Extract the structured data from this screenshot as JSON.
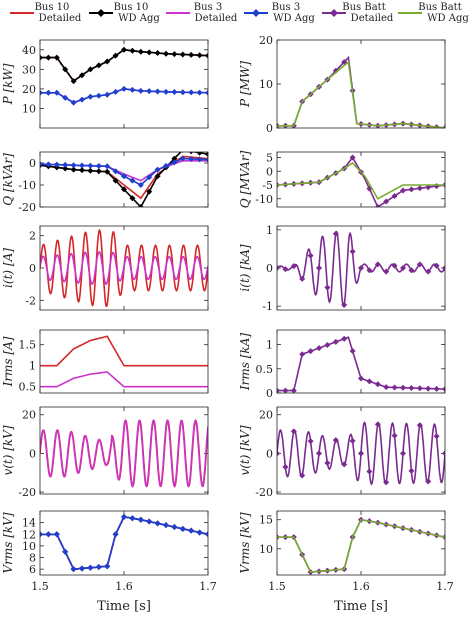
{
  "legend": [
    {
      "line1": "Bus 10",
      "line2": "Detailed",
      "color": "#d62728",
      "marker": "none"
    },
    {
      "line1": "Bus 10",
      "line2": "WD Agg",
      "color": "#000000",
      "marker": "diamond"
    },
    {
      "line1": "Bus 3",
      "line2": "Detailed",
      "color": "#cc33cc",
      "marker": "none"
    },
    {
      "line1": "Bus 3",
      "line2": "WD Agg",
      "color": "#1f3fcf",
      "marker": "diamond"
    },
    {
      "line1": "Bus Batt",
      "line2": "Detailed",
      "color": "#7a2b8f",
      "marker": "diamond"
    },
    {
      "line1": "Bus Batt",
      "line2": "WD Agg",
      "color": "#77ac30",
      "marker": "none"
    }
  ],
  "xlabel": "Time [s]",
  "x_ticks": [
    "1.5",
    "1.6",
    "1.7"
  ],
  "chart_data": [
    {
      "type": "line",
      "panel": "P-bus10-bus3",
      "ylabel": "P [kW]",
      "ylim": [
        0,
        45
      ],
      "yticks": [
        "10",
        "20",
        "30",
        "40"
      ],
      "x": [
        1.5,
        1.52,
        1.54,
        1.56,
        1.58,
        1.6,
        1.62,
        1.65,
        1.7
      ],
      "series": [
        {
          "name": "Bus 10 Detailed",
          "values": [
            36,
            36,
            24,
            30,
            34,
            40,
            39,
            38,
            37
          ]
        },
        {
          "name": "Bus 10 WD Agg",
          "values": [
            36,
            36,
            24,
            30,
            34,
            40,
            39,
            38,
            37
          ]
        },
        {
          "name": "Bus 3 Detailed",
          "values": [
            18,
            18,
            13,
            16,
            17,
            20,
            19,
            18.5,
            18
          ]
        },
        {
          "name": "Bus 3 WD Agg",
          "values": [
            18,
            18,
            13,
            16,
            17,
            20,
            19,
            18.5,
            18
          ]
        }
      ]
    },
    {
      "type": "line",
      "panel": "P-batt",
      "ylabel": "P [MW]",
      "ylim": [
        0,
        20
      ],
      "yticks": [
        "0",
        "10",
        "20"
      ],
      "x": [
        1.5,
        1.52,
        1.53,
        1.56,
        1.585,
        1.595,
        1.62,
        1.65,
        1.7
      ],
      "series": [
        {
          "name": "Bus Batt Detailed",
          "values": [
            0.5,
            0.5,
            6,
            11,
            16,
            1,
            0.5,
            1,
            0
          ]
        },
        {
          "name": "Bus Batt WD Agg",
          "values": [
            0.5,
            0.5,
            6,
            11,
            15,
            1,
            0.5,
            1,
            0
          ]
        }
      ]
    },
    {
      "type": "line",
      "panel": "Q-bus10-bus3",
      "ylabel": "Q [kVAr]",
      "ylim": [
        -20,
        5
      ],
      "yticks": [
        "-20",
        "-10",
        "0"
      ],
      "x": [
        1.5,
        1.54,
        1.58,
        1.6,
        1.62,
        1.64,
        1.67,
        1.7
      ],
      "series": [
        {
          "name": "Bus 10 Detailed",
          "values": [
            -1,
            -3,
            -4,
            -10,
            -16,
            -5,
            3,
            2
          ]
        },
        {
          "name": "Bus 10 WD Agg",
          "values": [
            -1,
            -3,
            -4,
            -12,
            -20,
            -6,
            6,
            4
          ]
        },
        {
          "name": "Bus 3 Detailed",
          "values": [
            -0.5,
            -1,
            -1.5,
            -5,
            -8,
            -3,
            1,
            1
          ]
        },
        {
          "name": "Bus 3 WD Agg",
          "values": [
            -0.5,
            -1,
            -1.5,
            -6,
            -10,
            -3,
            2,
            1.5
          ]
        }
      ]
    },
    {
      "type": "line",
      "panel": "Q-batt",
      "ylabel": "Q [MVAr]",
      "ylim": [
        -13,
        7
      ],
      "yticks": [
        "-10",
        "-5",
        "0",
        "5"
      ],
      "x": [
        1.5,
        1.55,
        1.58,
        1.59,
        1.605,
        1.62,
        1.65,
        1.7
      ],
      "series": [
        {
          "name": "Bus Batt Detailed",
          "values": [
            -5,
            -4,
            1,
            5,
            -3,
            -13,
            -7,
            -5
          ]
        },
        {
          "name": "Bus Batt WD Agg",
          "values": [
            -5,
            -4,
            1,
            3,
            -2,
            -10,
            -5,
            -5
          ]
        }
      ]
    },
    {
      "type": "line",
      "panel": "i-bus10-bus3",
      "ylabel": "i(t) [A]",
      "ylim": [
        -2.6,
        2.6
      ],
      "yticks": [
        "-2",
        "0",
        "2"
      ],
      "x": [
        1.5,
        1.56,
        1.585,
        1.6,
        1.7
      ],
      "series": [
        {
          "name": "Bus 10 Detailed",
          "values": [
            1.4,
            2.3,
            2.4,
            1.4,
            1.4
          ]
        },
        {
          "name": "Bus 3 Detailed",
          "values": [
            0.7,
            1.0,
            1.0,
            0.7,
            0.7
          ]
        }
      ]
    },
    {
      "type": "line",
      "panel": "i-batt",
      "ylabel": "i(t) [kA]",
      "ylim": [
        -1.1,
        1.1
      ],
      "yticks": [
        "-1",
        "0",
        "1"
      ],
      "x": [
        1.5,
        1.52,
        1.55,
        1.585,
        1.6,
        1.7
      ],
      "series": [
        {
          "name": "Bus Batt Detailed",
          "values": [
            0.05,
            0.05,
            0.8,
            1.05,
            0.1,
            0.1
          ]
        }
      ]
    },
    {
      "type": "line",
      "panel": "Irms-bus10-bus3",
      "ylabel": "Irms [A]",
      "ylim": [
        0.35,
        1.85
      ],
      "yticks": [
        "0.5",
        "1",
        "1.5"
      ],
      "x": [
        1.5,
        1.52,
        1.54,
        1.56,
        1.58,
        1.6,
        1.62,
        1.7
      ],
      "series": [
        {
          "name": "Bus 10 Detailed",
          "values": [
            1.0,
            1.0,
            1.4,
            1.6,
            1.7,
            1.0,
            1.0,
            1.0
          ]
        },
        {
          "name": "Bus 3 Detailed",
          "values": [
            0.5,
            0.5,
            0.7,
            0.8,
            0.85,
            0.5,
            0.5,
            0.5
          ]
        }
      ]
    },
    {
      "type": "line",
      "panel": "Irms-batt",
      "ylabel": "Irms [kA]",
      "ylim": [
        0,
        1.3
      ],
      "yticks": [
        "0",
        "0.5",
        "1"
      ],
      "x": [
        1.5,
        1.52,
        1.53,
        1.585,
        1.6,
        1.63,
        1.7
      ],
      "series": [
        {
          "name": "Bus Batt Detailed",
          "values": [
            0.05,
            0.05,
            0.8,
            1.15,
            0.3,
            0.12,
            0.08
          ]
        }
      ]
    },
    {
      "type": "line",
      "panel": "v-bus10-bus3",
      "ylabel": "v(t) [kV]",
      "ylim": [
        -21,
        24
      ],
      "yticks": [
        "-20",
        "0",
        "20"
      ],
      "x": [
        1.5,
        1.53,
        1.58,
        1.6,
        1.7
      ],
      "series": [
        {
          "name": "Bus 10 Detailed",
          "values": [
            12,
            12,
            6,
            17,
            17
          ]
        },
        {
          "name": "Bus 3 Detailed",
          "values": [
            12,
            12,
            6,
            17,
            17
          ]
        }
      ]
    },
    {
      "type": "line",
      "panel": "v-batt",
      "ylabel": "v(t) [kV]",
      "ylim": [
        -21,
        24
      ],
      "yticks": [
        "-20",
        "0",
        "20"
      ],
      "x": [
        1.5,
        1.53,
        1.58,
        1.6,
        1.7
      ],
      "series": [
        {
          "name": "Bus Batt Detailed",
          "values": [
            12,
            12,
            6,
            16,
            15
          ]
        }
      ]
    },
    {
      "type": "line",
      "panel": "Vrms-bus10-bus3",
      "ylabel": "Vrms [kV]",
      "ylim": [
        5,
        16
      ],
      "yticks": [
        "6",
        "8",
        "10",
        "12",
        "14"
      ],
      "x": [
        1.5,
        1.52,
        1.54,
        1.58,
        1.59,
        1.6,
        1.62,
        1.7
      ],
      "series": [
        {
          "name": "Bus 10 Detailed",
          "values": [
            12,
            12,
            6,
            6.5,
            12,
            15,
            14.5,
            12
          ]
        },
        {
          "name": "Bus 10 WD Agg",
          "values": [
            12,
            12,
            6,
            6.5,
            12,
            15,
            14.5,
            12
          ]
        },
        {
          "name": "Bus 3 Detailed",
          "values": [
            12,
            12,
            6,
            6.5,
            12,
            15,
            14.5,
            12
          ]
        },
        {
          "name": "Bus 3 WD Agg",
          "values": [
            12,
            12,
            6,
            6.5,
            12,
            15,
            14.5,
            12
          ]
        }
      ]
    },
    {
      "type": "line",
      "panel": "Vrms-batt",
      "ylabel": "Vrms [kV]",
      "ylim": [
        5.5,
        16.5
      ],
      "yticks": [
        "10",
        "15"
      ],
      "x": [
        1.5,
        1.52,
        1.54,
        1.58,
        1.59,
        1.6,
        1.62,
        1.7
      ],
      "series": [
        {
          "name": "Bus Batt Detailed",
          "values": [
            12,
            12,
            6,
            6.5,
            12,
            15,
            14.5,
            12
          ]
        },
        {
          "name": "Bus Batt WD Agg",
          "values": [
            12,
            12,
            6,
            6.5,
            12,
            15,
            14.5,
            12
          ]
        }
      ]
    }
  ]
}
